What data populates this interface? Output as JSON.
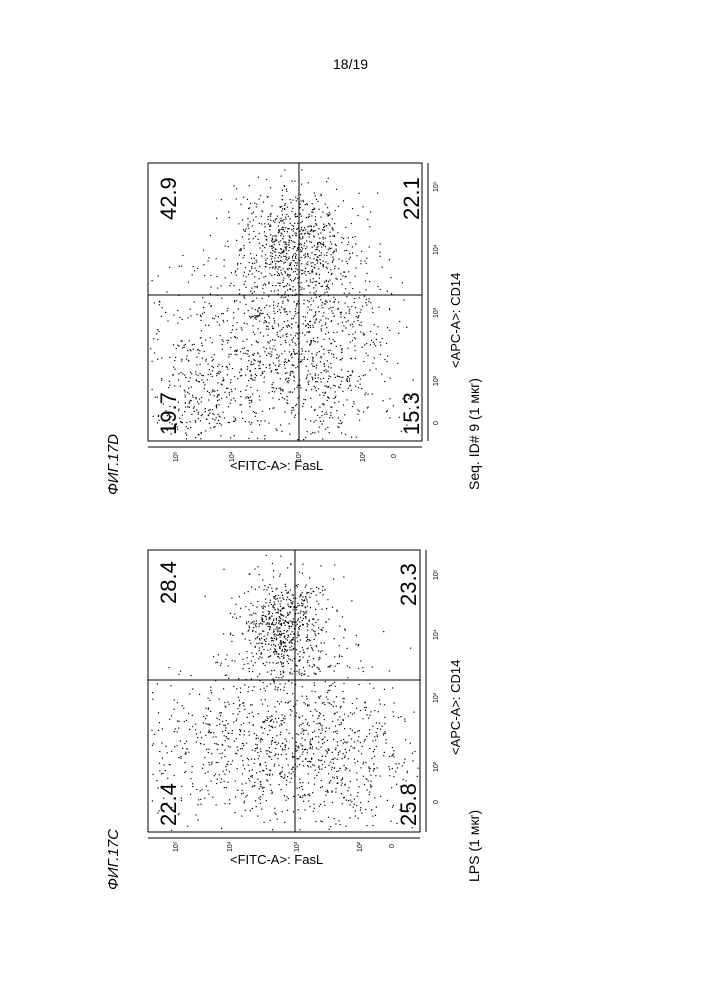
{
  "page": {
    "number": "18/19"
  },
  "figures": [
    {
      "id": "17D",
      "label": "ФИГ.17D",
      "caption": "Seq. ID# 9 (1 мкг)",
      "x_axis_label": "<APC-A>: CD14",
      "y_axis_label": "<FITC-A>: FasL",
      "x_ticks": [
        "0",
        "10²",
        "10³",
        "10⁴",
        "10⁵"
      ],
      "y_ticks": [
        "0",
        "10²",
        "10³",
        "10⁴",
        "10⁵"
      ],
      "quadrants": {
        "upper_left": "19.7",
        "upper_right": "42.9",
        "lower_left": "15.3",
        "lower_right": "22.1"
      }
    },
    {
      "id": "17C",
      "label": "ФИГ.17C",
      "caption": "LPS (1 мкг)",
      "x_axis_label": "<APC-A>: CD14",
      "y_axis_label": "<FITC-A>: FasL",
      "x_ticks": [
        "0",
        "10²",
        "10³",
        "10⁴",
        "10⁵"
      ],
      "y_ticks": [
        "0",
        "10²",
        "10³",
        "10⁴",
        "10⁵"
      ],
      "quadrants": {
        "upper_left": "22.4",
        "upper_right": "28.4",
        "lower_left": "25.8",
        "lower_right": "23.3"
      }
    }
  ]
}
